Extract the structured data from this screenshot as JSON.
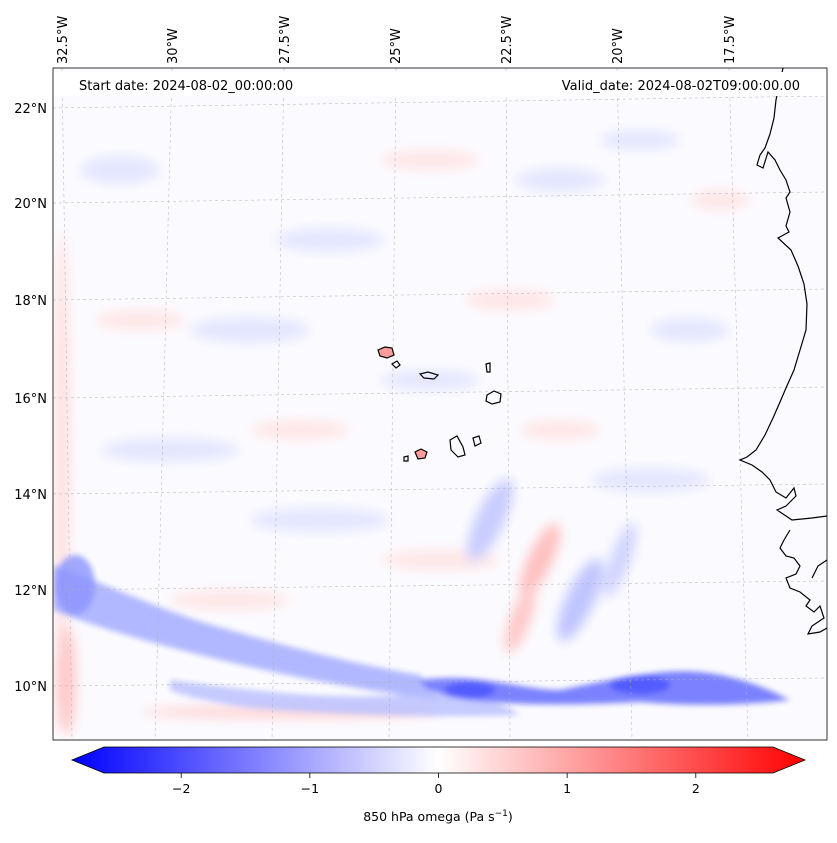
{
  "map": {
    "start_label": "Start date: 2024-08-02_00:00:00",
    "valid_label": "Valid_date: 2024-08-02T09:00:00.00",
    "lon_labels": [
      "32.5°W",
      "30°W",
      "27.5°W",
      "25°W",
      "22.5°W",
      "20°W",
      "17.5°W"
    ],
    "lat_labels": [
      "22°N",
      "20°N",
      "18°N",
      "16°N",
      "14°N",
      "12°N",
      "10°N"
    ]
  },
  "colorbar": {
    "label": "850 hPa omega (Pa s",
    "label_exponent": "−1",
    "label_suffix": ")",
    "ticks": [
      "−2",
      "−1",
      "0",
      "1",
      "2"
    ],
    "tick_values": [
      -2,
      -1,
      0,
      1,
      2
    ],
    "vmin": -2.6,
    "vmax": 2.6,
    "cmap": "bwr"
  },
  "colors": {
    "negative": "#0000ff",
    "neutral": "#ffffff",
    "positive": "#ff0000",
    "coastline": "#000000",
    "grid": "#b0b0b0"
  }
}
